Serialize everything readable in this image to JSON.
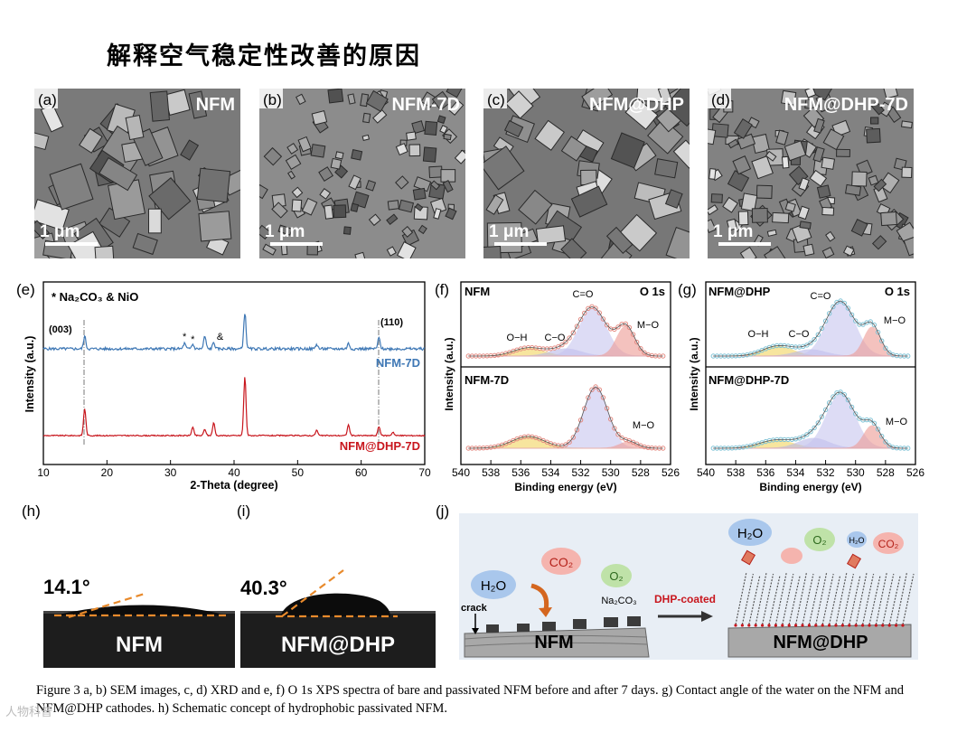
{
  "title": "解释空气稳定性改善的原因",
  "sem_panels": [
    {
      "letter": "(a)",
      "sample": "NFM",
      "scale": "1 μm"
    },
    {
      "letter": "(b)",
      "sample": "NFM-7D",
      "scale": "1 μm"
    },
    {
      "letter": "(c)",
      "sample": "NFM@DHP",
      "scale": "1 μm"
    },
    {
      "letter": "(d)",
      "sample": "NFM@DHP-7D",
      "scale": "1 μm"
    }
  ],
  "xrd": {
    "letter": "(e)",
    "legend_text": "* Na₂CO₃  & NiO",
    "xlabel": "2-Theta (degree)",
    "ylabel": "Intensity (a.u.)",
    "peak_labels": [
      "(003)",
      "(110)"
    ],
    "series": [
      "NFM-7D",
      "NFM@DHP-7D"
    ],
    "colors": {
      "NFM-7D": "#3f78b5",
      "NFM@DHP-7D": "#c8161d"
    }
  },
  "xps_f": {
    "letter": "(f)",
    "top_sample": "NFM",
    "bottom_sample": "NFM-7D",
    "spectrum": "O 1s",
    "peaks_top": [
      "O−H",
      "C−O",
      "C=O",
      "M−O"
    ],
    "peaks_bottom": [
      "M−O"
    ],
    "xlabel": "Binding energy (eV)",
    "ylabel": "Intensity (a.u.)"
  },
  "xps_g": {
    "letter": "(g)",
    "top_sample": "NFM@DHP",
    "bottom_sample": "NFM@DHP-7D",
    "spectrum": "O 1s",
    "peaks_top": [
      "O−H",
      "C−O",
      "C=O",
      "M−O"
    ],
    "peaks_bottom": [
      "M−O"
    ],
    "xlabel": "Binding energy (eV)",
    "ylabel": "Intensity (a.u.)"
  },
  "contact_h": {
    "letter": "(h)",
    "angle": "14.1°",
    "sample": "NFM"
  },
  "contact_i": {
    "letter": "(i)",
    "angle": "40.3°",
    "sample": "NFM@DHP"
  },
  "schematic": {
    "letter": "(j)",
    "h2o": "H₂O",
    "co2": "CO₂",
    "o2": "O₂",
    "na2co3": "Na₂CO₃",
    "crack": "crack",
    "arrow_label": "DHP-coated",
    "left_sample": "NFM",
    "right_sample": "NFM@DHP",
    "colors": {
      "h2o": "#a9c7ec",
      "co2": "#f5b4ae",
      "o2": "#bfe2a8"
    }
  },
  "caption": "Figure 3 a, b) SEM images, c, d) XRD and e, f) O 1s XPS spectra of bare and passivated NFM before and after 7 days. g) Contact angle of the water on the NFM and NFM@DHP cathodes. h) Schematic concept of hydrophobic passivated NFM.",
  "watermark": "人物科普",
  "chart_data": [
    {
      "type": "line",
      "title": "",
      "xlabel": "2-Theta (degree)",
      "ylabel": "Intensity (a.u.)",
      "xlim": [
        10,
        70
      ],
      "xticks": [
        10,
        20,
        30,
        40,
        50,
        60,
        70
      ],
      "series": [
        {
          "name": "NFM-7D",
          "peaks_x": [
            16.5,
            32.2,
            33.5,
            35.4,
            36.8,
            41.7,
            53.0,
            58.0,
            62.8
          ]
        },
        {
          "name": "NFM@DHP-7D",
          "peaks_x": [
            16.5,
            33.5,
            35.4,
            36.8,
            41.7,
            53.0,
            58.0,
            62.8,
            65.0
          ]
        }
      ]
    },
    {
      "type": "area",
      "title": "",
      "xlabel": "Binding energy (eV)",
      "ylabel": "Intensity (a.u.)",
      "xlim": [
        540,
        526
      ],
      "xticks": [
        540,
        538,
        536,
        534,
        532,
        530,
        528,
        526
      ],
      "series": [
        {
          "name": "NFM",
          "peaks_x": [
            535.5,
            533.0,
            531.2,
            529.0
          ]
        },
        {
          "name": "NFM-7D",
          "peaks_x": [
            535.5,
            531.0,
            528.8
          ]
        }
      ]
    },
    {
      "type": "area",
      "title": "",
      "xlabel": "Binding energy (eV)",
      "ylabel": "Intensity (a.u.)",
      "xlim": [
        540,
        526
      ],
      "xticks": [
        540,
        538,
        536,
        534,
        532,
        530,
        528,
        526
      ],
      "series": [
        {
          "name": "NFM@DHP",
          "peaks_x": [
            535.2,
            533.0,
            531.0,
            528.9
          ]
        },
        {
          "name": "NFM@DHP-7D",
          "peaks_x": [
            535.3,
            532.8,
            531.0,
            528.9
          ]
        }
      ]
    }
  ]
}
